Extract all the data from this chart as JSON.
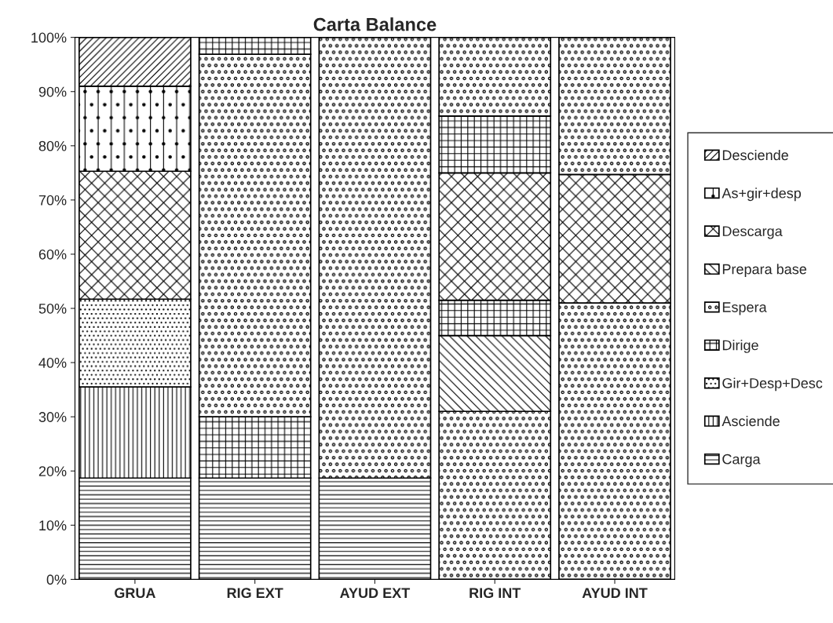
{
  "chart_data": {
    "type": "bar",
    "title": "Carta Balance",
    "stacked": true,
    "categories": [
      "GRUA",
      "RIG EXT",
      "AYUD EXT",
      "RIG INT",
      "AYUD INT"
    ],
    "series": [
      {
        "name": "Carga",
        "color": "#000000",
        "values": [
          18.7,
          18.7,
          18.7,
          null,
          null
        ]
      },
      {
        "name": "Asciende",
        "color": "#000000",
        "values": [
          16.8,
          null,
          null,
          null,
          null
        ]
      },
      {
        "color": "#000000",
        "values": [
          null,
          null,
          81.3,
          31,
          51
        ]
      },
      {
        "name": "Gir+Desp+Desc",
        "color": "#000000",
        "values": [
          16.2,
          null,
          null,
          null,
          null
        ]
      },
      {
        "name": "Dirige",
        "color": "#000000",
        "values": [
          null,
          11.3,
          null,
          null,
          null
        ]
      },
      {
        "name": "Espera",
        "color": "#000000",
        "values": [
          null,
          66.9,
          null,
          null,
          null
        ]
      },
      {
        "name": "Prepara base",
        "color": "#000000",
        "values": [
          null,
          null,
          null,
          14,
          null
        ]
      },
      {
        "color": "#000000",
        "values": [
          null,
          null,
          null,
          6.5,
          null
        ]
      },
      {
        "name": "Descarga",
        "color": "#000000",
        "values": [
          23.6,
          null,
          null,
          23.5,
          23.7
        ]
      },
      {
        "color": "#000000",
        "values": [
          null,
          3.1,
          null,
          10.5,
          null
        ]
      },
      {
        "color": "#000000",
        "values": [
          null,
          null,
          null,
          14.5,
          25.3
        ]
      },
      {
        "name": "As+gir+desp",
        "color": "#000000",
        "values": [
          15.7,
          null,
          null,
          null,
          null
        ]
      },
      {
        "name": "Desciende",
        "color": "#000000",
        "values": [
          9.0,
          null,
          null,
          null,
          null
        ]
      }
    ],
    "ylim": [
      0,
      100
    ],
    "yticks": [
      {
        "value": 0,
        "label": "0%"
      },
      {
        "value": 10,
        "label": "10%"
      },
      {
        "value": 20,
        "label": "20%"
      },
      {
        "value": 30,
        "label": "30%"
      },
      {
        "value": 40,
        "label": "40%"
      },
      {
        "value": 50,
        "label": "50%"
      },
      {
        "value": 60,
        "label": "60%"
      },
      {
        "value": 70,
        "label": "70%"
      },
      {
        "value": 80,
        "label": "80%"
      },
      {
        "value": 90,
        "label": "90%"
      },
      {
        "value": 100,
        "label": "100%"
      }
    ],
    "grid": false,
    "legend": "right"
  }
}
